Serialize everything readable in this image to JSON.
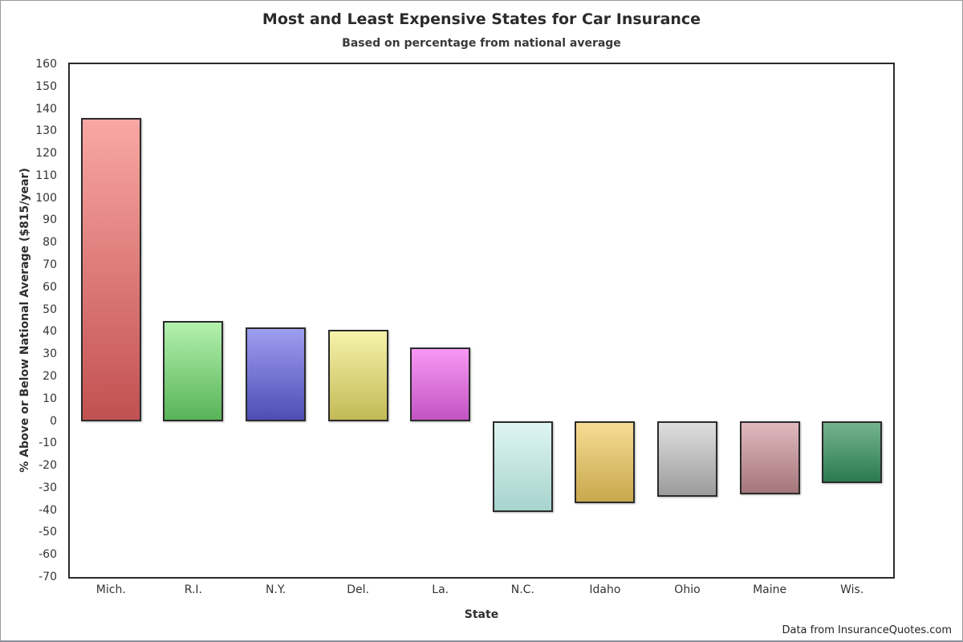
{
  "chart_data": {
    "type": "bar",
    "title": "Most and Least Expensive States for Car Insurance",
    "subtitle": "Based on percentage from national average",
    "xlabel": "State",
    "ylabel": "% Above or Below National Average ($815/year)",
    "caption": "Data from InsuranceQuotes.com",
    "categories": [
      "Mich.",
      "R.I.",
      "N.Y.",
      "Del.",
      "La.",
      "N.C.",
      "Idaho",
      "Ohio",
      "Maine",
      "Wis."
    ],
    "values": [
      136,
      45,
      42,
      41,
      33,
      -41,
      -37,
      -34,
      -33,
      -28
    ],
    "ylim": [
      -70,
      160
    ],
    "ytick_step": 10,
    "grid": false,
    "legend": false,
    "axis_color": "#2a2a2a",
    "text_color": "#333333",
    "bar_colors": [
      {
        "top": "#f9a7a3",
        "bottom": "#c25151"
      },
      {
        "top": "#b3f1ae",
        "bottom": "#58b458"
      },
      {
        "top": "#9e9ef0",
        "bottom": "#4d4db5"
      },
      {
        "top": "#f6f2aa",
        "bottom": "#c3ba56"
      },
      {
        "top": "#f898f4",
        "bottom": "#c354c3"
      },
      {
        "top": "#def5f2",
        "bottom": "#a7d3ce"
      },
      {
        "top": "#f6dc94",
        "bottom": "#c8a84d"
      },
      {
        "top": "#dedede",
        "bottom": "#9c9c9c"
      },
      {
        "top": "#e1b9be",
        "bottom": "#a4767b"
      },
      {
        "top": "#75b38d",
        "bottom": "#2c7b50"
      }
    ]
  }
}
